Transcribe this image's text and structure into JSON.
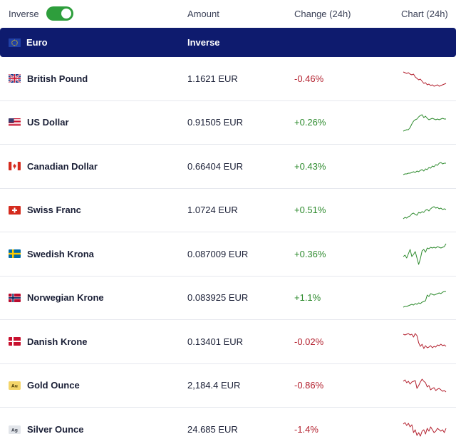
{
  "header": {
    "inverse_label": "Inverse",
    "inverse_on": true,
    "amount_label": "Amount",
    "change_label": "Change (24h)",
    "chart_label": "Chart (24h)"
  },
  "base": {
    "currency": "Euro",
    "flag": "eu-flag-icon",
    "mode_label": "Inverse"
  },
  "colors": {
    "navy": "#0e1b6e",
    "positive": "#2e8b2e",
    "negative": "#b3202e",
    "toggle": "#2e9e3c"
  },
  "rows": [
    {
      "name": "British Pound",
      "flag": "uk-flag-icon",
      "amount": "1.1621 EUR",
      "change": "-0.46%",
      "trend": "negative",
      "spark": [
        9,
        10,
        11,
        10,
        12,
        13,
        12,
        16,
        18,
        20,
        19,
        22,
        25,
        24,
        27,
        26,
        28,
        27,
        29,
        28,
        27,
        29,
        28,
        27,
        26,
        25
      ]
    },
    {
      "name": "US Dollar",
      "flag": "us-flag-icon",
      "amount": "0.91505 EUR",
      "change": "+0.26%",
      "trend": "positive",
      "spark": [
        30,
        29,
        28,
        28,
        25,
        20,
        16,
        14,
        13,
        10,
        8,
        7,
        11,
        9,
        12,
        14,
        13,
        12,
        13,
        14,
        13,
        14,
        13,
        12,
        13,
        13
      ]
    },
    {
      "name": "Canadian Dollar",
      "flag": "ca-flag-icon",
      "amount": "0.66404 EUR",
      "change": "+0.43%",
      "trend": "positive",
      "spark": [
        30,
        29,
        29,
        28,
        28,
        27,
        26,
        27,
        25,
        26,
        24,
        23,
        25,
        22,
        23,
        20,
        21,
        18,
        19,
        16,
        17,
        14,
        13,
        15,
        14,
        14
      ]
    },
    {
      "name": "Swiss Franc",
      "flag": "ch-flag-icon",
      "amount": "1.0724 EUR",
      "change": "+0.51%",
      "trend": "positive",
      "spark": [
        30,
        28,
        29,
        27,
        26,
        23,
        22,
        24,
        25,
        21,
        22,
        20,
        21,
        18,
        17,
        19,
        16,
        14,
        13,
        15,
        14,
        16,
        15,
        17,
        16,
        17
      ]
    },
    {
      "name": "Swedish Krona",
      "flag": "se-flag-icon",
      "amount": "0.087009 EUR",
      "change": "+0.36%",
      "trend": "positive",
      "spark": [
        22,
        20,
        24,
        18,
        12,
        22,
        19,
        15,
        24,
        33,
        25,
        14,
        12,
        16,
        10,
        11,
        9,
        10,
        9,
        10,
        8,
        9,
        10,
        9,
        8,
        4
      ]
    },
    {
      "name": "Norwegian Krone",
      "flag": "no-flag-icon",
      "amount": "0.083925 EUR",
      "change": "+1.1%",
      "trend": "positive",
      "spark": [
        31,
        30,
        30,
        29,
        28,
        27,
        28,
        26,
        27,
        25,
        26,
        24,
        23,
        22,
        14,
        16,
        12,
        13,
        14,
        13,
        12,
        11,
        12,
        10,
        9,
        9
      ]
    },
    {
      "name": "Danish Krone",
      "flag": "dk-flag-icon",
      "amount": "0.13401 EUR",
      "change": "-0.02%",
      "trend": "negative",
      "spark": [
        8,
        9,
        8,
        7,
        9,
        8,
        12,
        7,
        10,
        20,
        25,
        22,
        28,
        24,
        27,
        26,
        24,
        27,
        25,
        26,
        23,
        24,
        22,
        24,
        23,
        25
      ]
    },
    {
      "name": "Gold Ounce",
      "flag": "au-badge-icon",
      "amount": "2,184.4 EUR",
      "change": "-0.86%",
      "trend": "negative",
      "spark": [
        12,
        10,
        14,
        12,
        16,
        13,
        12,
        11,
        22,
        18,
        13,
        9,
        12,
        14,
        20,
        18,
        24,
        22,
        21,
        25,
        23,
        22,
        24,
        26,
        25,
        27
      ]
    },
    {
      "name": "Silver Ounce",
      "flag": "ag-badge-icon",
      "amount": "24.685 EUR",
      "change": "-1.4%",
      "trend": "negative",
      "spark": [
        10,
        8,
        12,
        9,
        14,
        11,
        22,
        18,
        26,
        22,
        27,
        20,
        18,
        24,
        16,
        20,
        14,
        18,
        22,
        20,
        16,
        18,
        20,
        18,
        22,
        16
      ]
    }
  ]
}
